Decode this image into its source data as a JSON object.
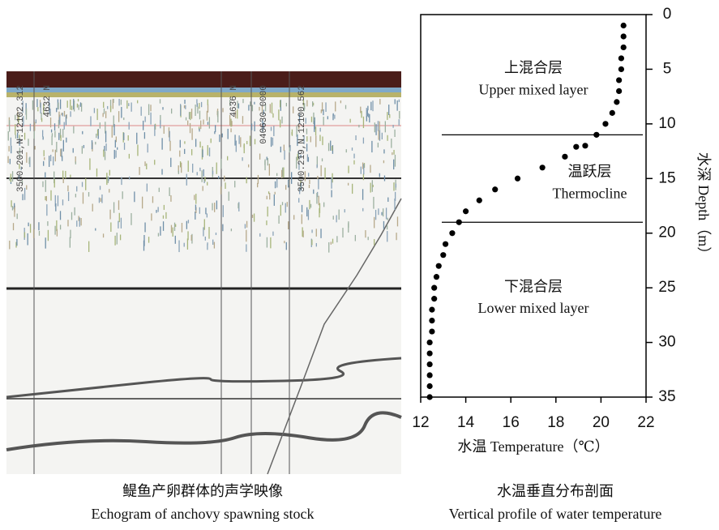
{
  "chart_data": {
    "type": "scatter",
    "x_label": "水温  Temperature（℃）",
    "y_label": "水深  Depth（m）",
    "caption_zh": "水温垂直分布剖面",
    "caption_en": "Vertical profile of water temperature",
    "annotations": [
      {
        "text": "上混合层",
        "x": 17,
        "y": 5
      },
      {
        "text": "Upper mixed layer",
        "x": 17,
        "y": 7
      },
      {
        "text": "温跃层",
        "x": 19.5,
        "y": 14.5
      },
      {
        "text": "Thermocline",
        "x": 19.5,
        "y": 16.5
      },
      {
        "text": "下混合层",
        "x": 17,
        "y": 25
      },
      {
        "text": "Lower mixed layer",
        "x": 17,
        "y": 27
      }
    ],
    "hlines": [
      11,
      19
    ],
    "series": [
      {
        "color": "#000000",
        "x": [
          21.0,
          21.0,
          21.0,
          20.9,
          20.9,
          20.8,
          20.8,
          20.7,
          20.5,
          20.2,
          19.8,
          19.3,
          18.9,
          18.4,
          17.4,
          16.3,
          15.3,
          14.6,
          14.0,
          13.7,
          13.4,
          13.1,
          13.0,
          12.8,
          12.7,
          12.6,
          12.6,
          12.5,
          12.5,
          12.5,
          12.4,
          12.4,
          12.4,
          12.4,
          12.4,
          12.4
        ],
        "y": [
          1,
          2,
          3,
          4,
          5,
          6,
          7,
          8,
          9,
          10,
          11,
          12,
          12.1,
          13,
          14,
          15,
          16,
          17,
          18,
          19,
          20,
          21,
          22,
          23,
          24,
          25,
          26,
          27,
          28,
          29,
          30,
          31,
          32,
          33,
          34,
          35
        ]
      }
    ],
    "xlim": [
      12,
      22
    ],
    "xticks": [
      12,
      14,
      16,
      18,
      20,
      22
    ],
    "ylim": [
      0,
      35
    ],
    "yticks": [
      0,
      5,
      10,
      15,
      20,
      25,
      30,
      35
    ],
    "y_inverted": true
  },
  "echogram": {
    "caption_zh": "鳀鱼产卵群体的声学映像",
    "caption_en": "Echogram of anchovy spawning stock",
    "labels": [
      "3500.201,N.12102.312",
      "4632 N",
      "4636 N",
      "040630 0000",
      "3500.219,N.12100.562"
    ]
  }
}
